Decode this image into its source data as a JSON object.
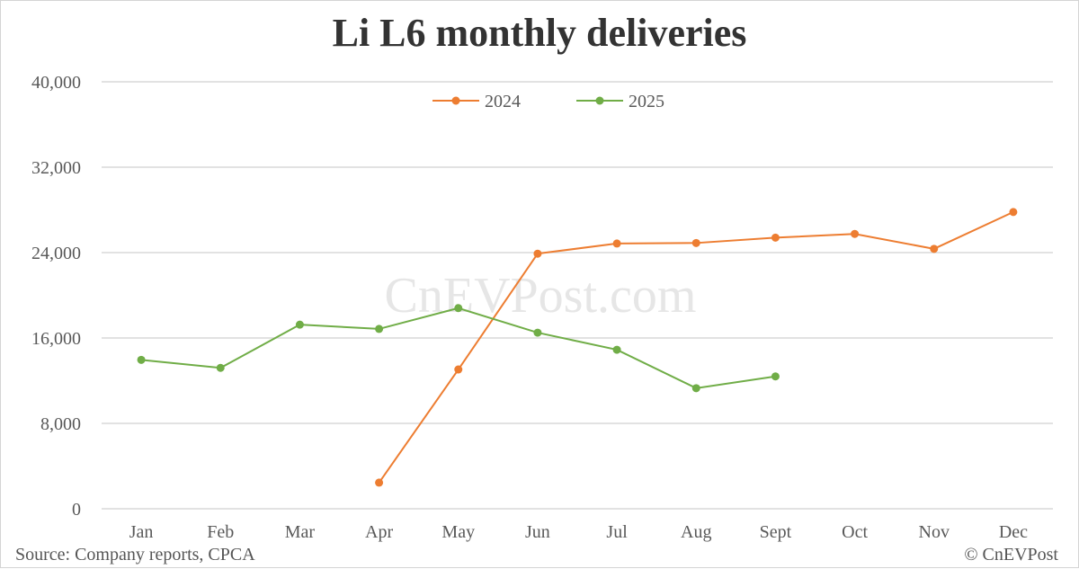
{
  "title": "Li L6 monthly deliveries",
  "watermark": "CnEVPost.com",
  "source": "Source: Company reports, CPCA",
  "copyright": "© CnEVPost",
  "colors": {
    "series_2024": "#ED7D31",
    "series_2025": "#70AD47",
    "grid": "#d9d9d9",
    "text": "#595959",
    "title": "#333333",
    "watermark": "#e6e6e6"
  },
  "chart_data": {
    "type": "line",
    "title": "Li L6 monthly deliveries",
    "xlabel": "",
    "ylabel": "",
    "categories": [
      "Jan",
      "Feb",
      "Mar",
      "Apr",
      "May",
      "Jun",
      "Jul",
      "Aug",
      "Sept",
      "Oct",
      "Nov",
      "Dec"
    ],
    "ylim": [
      0,
      40000
    ],
    "yticks": [
      0,
      8000,
      16000,
      24000,
      32000,
      40000
    ],
    "ytick_labels": [
      "0",
      "8,000",
      "16,000",
      "24,000",
      "32,000",
      "40,000"
    ],
    "grid": true,
    "legend_position": "top-center",
    "series": [
      {
        "name": "2024",
        "color": "#ED7D31",
        "values": [
          null,
          null,
          null,
          2450,
          13050,
          23900,
          24850,
          24900,
          25400,
          25750,
          24350,
          27800
        ]
      },
      {
        "name": "2025",
        "color": "#70AD47",
        "values": [
          13950,
          13200,
          17250,
          16850,
          18800,
          16500,
          14900,
          11300,
          12400,
          null,
          null,
          null
        ]
      }
    ]
  }
}
